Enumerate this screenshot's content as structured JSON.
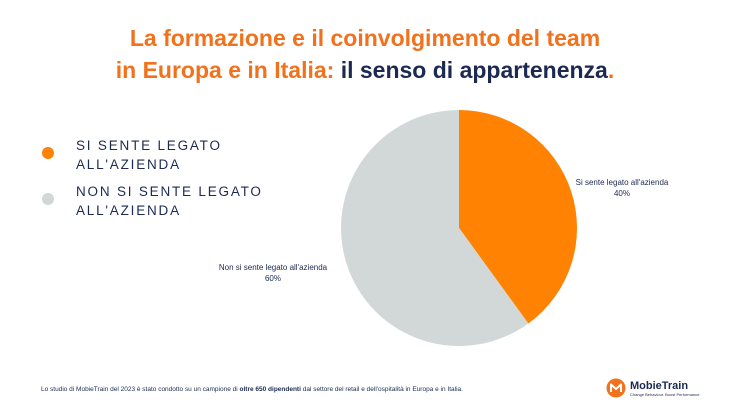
{
  "title": {
    "line1": "La formazione e il coinvolgimento del team",
    "line2_orange": "in Europa e in Italia:",
    "line2_navy": " il senso di appartenenza",
    "line2_dot": "."
  },
  "legend": [
    {
      "label": "SI SENTE LEGATO ALL'AZIENDA",
      "color": "#ff8203"
    },
    {
      "label": "NON SI SENTE LEGATO ALL'AZIENDA",
      "color": "#d2d8d8"
    }
  ],
  "chart_data": {
    "type": "pie",
    "slices": [
      {
        "label": "Si sente legato all'azienda",
        "value_label": "40%",
        "value": 40,
        "color": "#ff8203"
      },
      {
        "label": "Non si sente legato all'azienda",
        "value_label": "60%",
        "value": 60,
        "color": "#d2d8d8"
      }
    ],
    "start": "12 o'clock",
    "direction": "clockwise"
  },
  "footer": {
    "pre": "Lo studio di MobieTrain del 2023 è stato condotto su un campione di ",
    "bold": "oltre 650 dipendenti",
    "post": " dal settore del retail e dell'ospitalità in Europa e in Italia."
  },
  "logo": {
    "name": "MobieTrain",
    "tagline": "Change Behaviour. Boost Performance.",
    "color": "#f2711c"
  }
}
